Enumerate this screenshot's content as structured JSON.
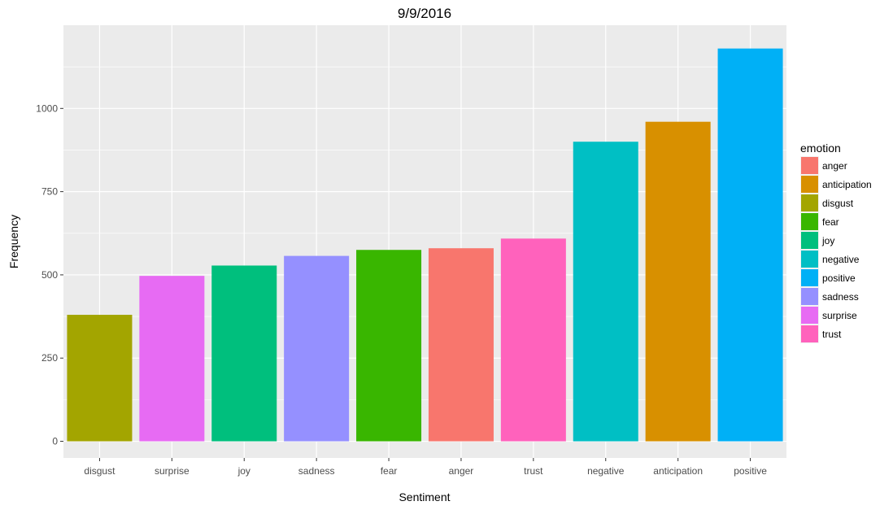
{
  "chart_data": {
    "type": "bar",
    "title": "9/9/2016",
    "xlabel": "Sentiment",
    "ylabel": "Frequency",
    "categories": [
      "disgust",
      "surprise",
      "joy",
      "sadness",
      "fear",
      "anger",
      "trust",
      "negative",
      "anticipation",
      "positive"
    ],
    "values": [
      380,
      497,
      528,
      557,
      575,
      580,
      609,
      900,
      960,
      1180
    ],
    "bar_colors": [
      "#A3A500",
      "#E76BF3",
      "#00BF7D",
      "#9590FF",
      "#39B600",
      "#F8766D",
      "#FF62BC",
      "#00BFC4",
      "#D89000",
      "#00B0F6"
    ],
    "ylim": [
      -50,
      1250
    ],
    "yticks": [
      0,
      250,
      500,
      750,
      1000
    ],
    "ytick_labels": [
      "0",
      "250",
      "500",
      "750",
      "1000"
    ],
    "grid": true,
    "legend": {
      "title": "emotion",
      "position": "right",
      "entries": [
        {
          "label": "anger",
          "color": "#F8766D"
        },
        {
          "label": "anticipation",
          "color": "#D89000"
        },
        {
          "label": "disgust",
          "color": "#A3A500"
        },
        {
          "label": "fear",
          "color": "#39B600"
        },
        {
          "label": "joy",
          "color": "#00BF7D"
        },
        {
          "label": "negative",
          "color": "#00BFC4"
        },
        {
          "label": "positive",
          "color": "#00B0F6"
        },
        {
          "label": "sadness",
          "color": "#9590FF"
        },
        {
          "label": "surprise",
          "color": "#E76BF3"
        },
        {
          "label": "trust",
          "color": "#FF62BC"
        }
      ]
    }
  }
}
